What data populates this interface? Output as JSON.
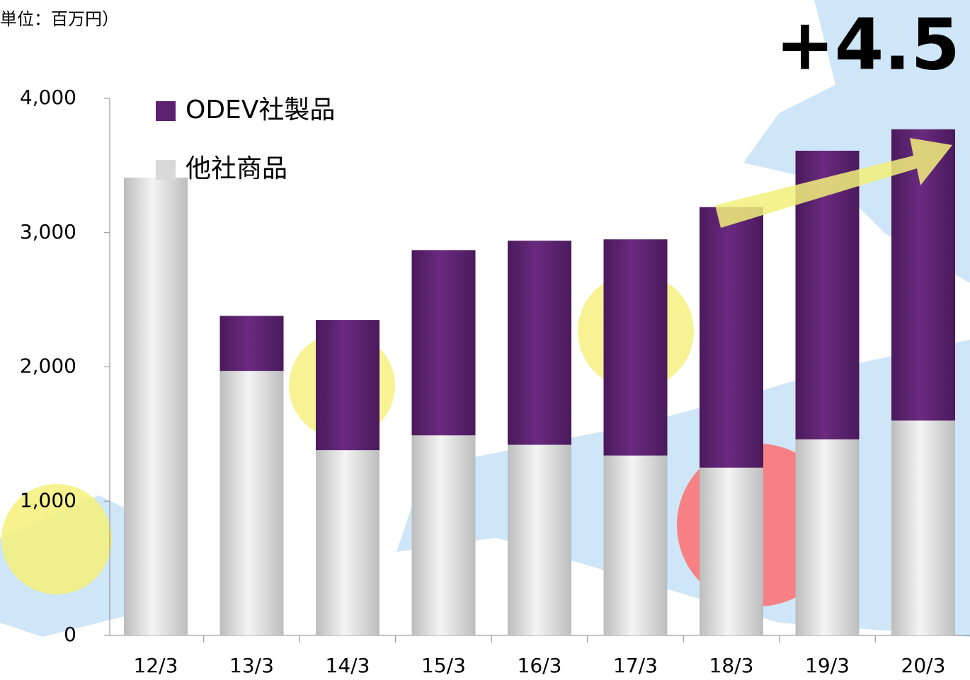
{
  "chart_data": {
    "type": "stacked-bar",
    "unit_note": "単位：百万円）",
    "annotation": "+4.5",
    "categories": [
      "12/3",
      "13/3",
      "14/3",
      "15/3",
      "16/3",
      "17/3",
      "18/3",
      "19/3",
      "20/3"
    ],
    "series": [
      {
        "name": "ODEV社製品",
        "color": "#5b2170",
        "values": [
          0,
          410,
          970,
          1380,
          1520,
          1610,
          1940,
          2150,
          2170
        ]
      },
      {
        "name": "他社商品",
        "color": "#d9d9d9",
        "values": [
          3410,
          1970,
          1380,
          1490,
          1420,
          1340,
          1250,
          1460,
          1600
        ]
      }
    ],
    "ylim": [
      0,
      4000
    ],
    "yticks": [
      0,
      {
        "value": 1000,
        "label": "1,000"
      },
      {
        "value": 2000,
        "label": "2,000"
      },
      {
        "value": 3000,
        "label": "3,000"
      },
      {
        "value": 4000,
        "label": "4,000"
      }
    ]
  }
}
